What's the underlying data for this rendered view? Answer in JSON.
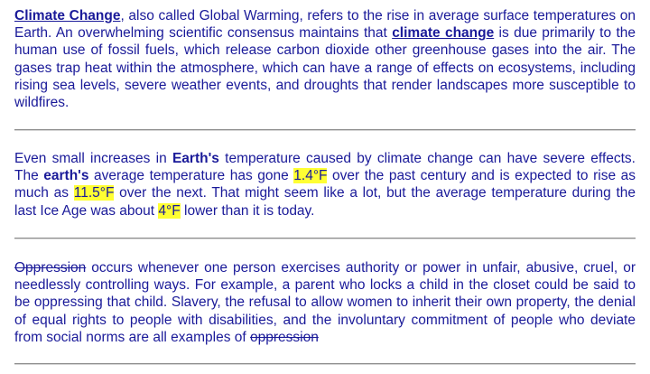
{
  "paragraphs": [
    {
      "lead_term": "Climate Change",
      "text_a": ", also called Global Warming, refers to the rise in average surface temperatures on Earth. An overwhelming scientific consensus maintains that ",
      "term2": "climate change",
      "text_b": " is due primarily to the human use of fossil fuels, which release carbon dioxide other greenhouse gases into the air. The gases trap heat within the atmosphere, which can have a range of effects on ecosystems, including rising sea levels, severe weather events, and droughts that render landscapes more susceptible to wildfires."
    },
    {
      "text_a": "Even small increases in ",
      "bold1": "Earth's",
      "text_b": " temperature caused by climate change can have severe effects. The ",
      "bold2": "earth's",
      "text_c": " average temperature has gone ",
      "hl1": "1.4°F",
      "text_d": " over the past century and is expected to rise as much as ",
      "hl2": "11.5°F",
      "text_e": " over the next. That might seem like a lot, but the average temperature during the last Ice Age was about ",
      "hl3": "4°F",
      "text_f": " lower than it is today."
    },
    {
      "strike1": "Oppression",
      "text_a": " occurs whenever one person exercises authority or power in unfair, abusive, cruel, or needlessly controlling ways. For example, a parent who locks a child in the closet could be said to be oppressing that child. Slavery, the refusal to allow women to inherit their own property, the denial of equal rights to people with disabilities, and the involuntary commitment of people who deviate from social norms are all examples of ",
      "strike2": "oppression"
    }
  ]
}
